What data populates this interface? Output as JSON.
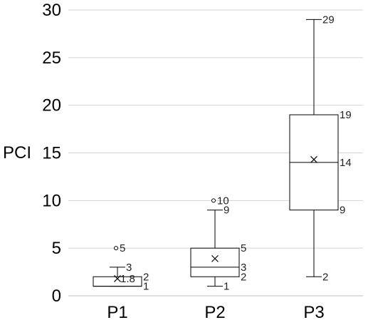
{
  "chart_data": {
    "type": "box",
    "title": "",
    "xlabel": "",
    "ylabel": "PCI",
    "ylim": [
      0,
      30
    ],
    "yticks": [
      0,
      5,
      10,
      15,
      20,
      25,
      30
    ],
    "grid": "horizontal",
    "categories": [
      "P1",
      "P2",
      "P3"
    ],
    "boxes": [
      {
        "category": "P1",
        "min": 1,
        "q1": 1,
        "median": 1,
        "q3": 2,
        "max": 3,
        "mean": 1.8,
        "outliers": [
          5
        ],
        "labels": {
          "max": "3",
          "q3": "2",
          "mean": "1.8",
          "q1": "1",
          "outlier": "5"
        }
      },
      {
        "category": "P2",
        "min": 1,
        "q1": 2,
        "median": 3,
        "q3": 5,
        "max": 9,
        "mean": 3.9,
        "outliers": [
          10
        ],
        "labels": {
          "max": "9",
          "q3": "5",
          "median": "3",
          "q1": "2",
          "min": "1",
          "outlier": "10"
        }
      },
      {
        "category": "P3",
        "min": 2,
        "q1": 9,
        "median": 14,
        "q3": 19,
        "max": 29,
        "mean": 14.3,
        "outliers": [],
        "labels": {
          "max": "29",
          "q3": "19",
          "median": "14",
          "q1": "9",
          "min": "2"
        }
      }
    ]
  }
}
